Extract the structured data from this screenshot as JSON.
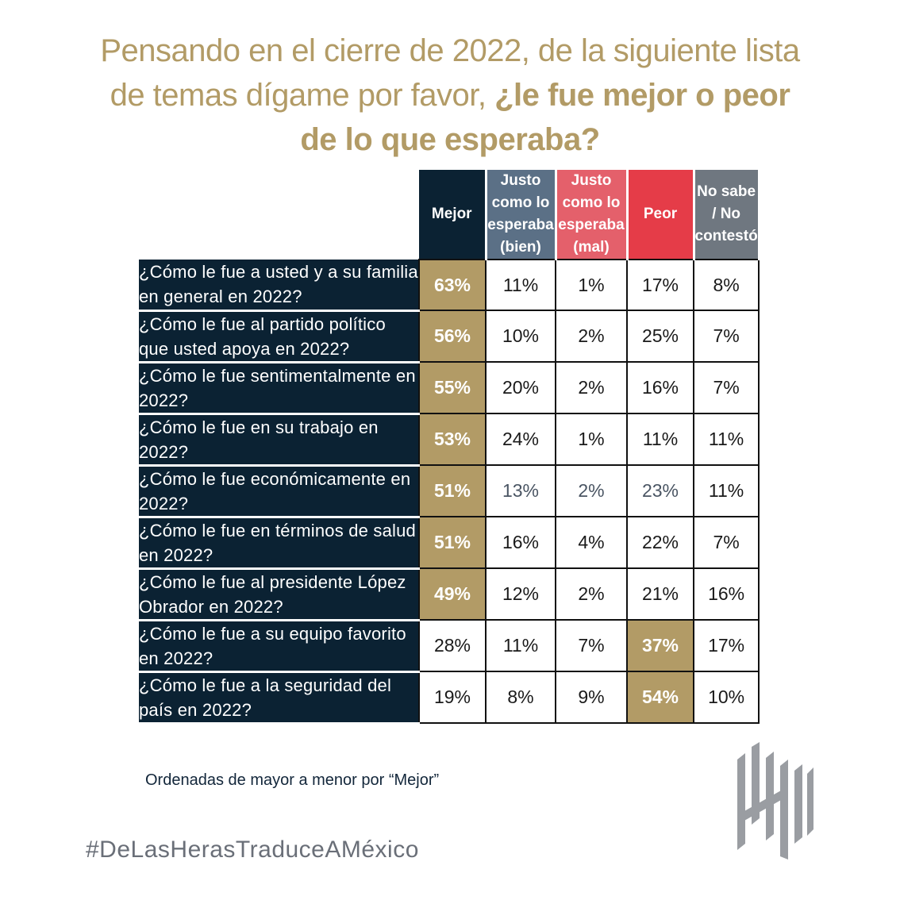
{
  "title": {
    "line1": "Pensando en el cierre de 2022, de la siguiente lista",
    "line2_plain": "de temas dígame por favor, ",
    "line2_bold": "¿le fue mejor o peor",
    "line3_bold": "de lo que esperaba?"
  },
  "colors": {
    "title": "#b29b66",
    "mejor_header": "#0b2233",
    "bien_header": "#5b7086",
    "mal_header": "#e4606b",
    "peor_header": "#e53c48",
    "ns_header": "#6f7780",
    "highlight": "#b29b66",
    "question_bg": "#0b2233"
  },
  "headers": [
    {
      "lines": [
        "Mejor"
      ]
    },
    {
      "lines": [
        "Justo",
        "como lo",
        "esperaba",
        "(bien)"
      ]
    },
    {
      "lines": [
        "Justo",
        "como lo",
        "esperaba",
        "(mal)"
      ]
    },
    {
      "lines": [
        "Peor"
      ]
    },
    {
      "lines": [
        "No sabe",
        "/ No",
        "contestó"
      ]
    }
  ],
  "rows": [
    {
      "q": "¿Cómo le fue a usted y a su familia en general en 2022?",
      "v": [
        "63%",
        "11%",
        "1%",
        "17%",
        "8%"
      ],
      "hl": 0
    },
    {
      "q": "¿Cómo le fue al partido político que usted apoya en 2022?",
      "v": [
        "56%",
        "10%",
        "2%",
        "25%",
        "7%"
      ],
      "hl": 0
    },
    {
      "q": "¿Cómo le fue sentimentalmente en 2022?",
      "v": [
        "55%",
        "20%",
        "2%",
        "16%",
        "7%"
      ],
      "hl": 0
    },
    {
      "q": "¿Cómo le fue en su trabajo en 2022?",
      "v": [
        "53%",
        "24%",
        "1%",
        "11%",
        "11%"
      ],
      "hl": 0
    },
    {
      "q": "¿Cómo le fue económicamente en 2022?",
      "v": [
        "51%",
        "13%",
        "2%",
        "23%",
        "11%"
      ],
      "hl": 0,
      "muted": true
    },
    {
      "q": "¿Cómo le fue en términos de salud en 2022?",
      "v": [
        "51%",
        "16%",
        "4%",
        "22%",
        "7%"
      ],
      "hl": 0
    },
    {
      "q": "¿Cómo le fue al presidente López Obrador en 2022?",
      "v": [
        "49%",
        "12%",
        "2%",
        "21%",
        "16%"
      ],
      "hl": 0
    },
    {
      "q": "¿Cómo le fue a su equipo favorito en 2022?",
      "v": [
        "28%",
        "11%",
        "7%",
        "37%",
        "17%"
      ],
      "hl": 3
    },
    {
      "q": "¿Cómo le fue a la seguridad del país en 2022?",
      "v": [
        "19%",
        "8%",
        "9%",
        "54%",
        "10%"
      ],
      "hl": 3
    }
  ],
  "chart_data": {
    "type": "table",
    "title": "Pensando en el cierre de 2022, de la siguiente lista de temas dígame por favor, ¿le fue mejor o peor de lo que esperaba?",
    "columns": [
      "Mejor",
      "Justo como lo esperaba (bien)",
      "Justo como lo esperaba (mal)",
      "Peor",
      "No sabe / No contestó"
    ],
    "categories": [
      "¿Cómo le fue a usted y a su familia en general en 2022?",
      "¿Cómo le fue al partido político que usted apoya en 2022?",
      "¿Cómo le fue sentimentalmente en 2022?",
      "¿Cómo le fue en su trabajo en 2022?",
      "¿Cómo le fue económicamente en 2022?",
      "¿Cómo le fue en términos de salud en 2022?",
      "¿Cómo le fue al presidente López Obrador en 2022?",
      "¿Cómo le fue a su equipo favorito en 2022?",
      "¿Cómo le fue a la seguridad del país en 2022?"
    ],
    "series": [
      {
        "name": "Mejor",
        "values": [
          63,
          56,
          55,
          53,
          51,
          51,
          49,
          28,
          19
        ]
      },
      {
        "name": "Justo como lo esperaba (bien)",
        "values": [
          11,
          10,
          20,
          24,
          13,
          16,
          12,
          11,
          8
        ]
      },
      {
        "name": "Justo como lo esperaba (mal)",
        "values": [
          1,
          2,
          2,
          1,
          2,
          4,
          2,
          7,
          9
        ]
      },
      {
        "name": "Peor",
        "values": [
          17,
          25,
          16,
          11,
          23,
          22,
          21,
          37,
          54
        ]
      },
      {
        "name": "No sabe / No contestó",
        "values": [
          8,
          7,
          7,
          11,
          11,
          7,
          16,
          17,
          10
        ]
      }
    ],
    "units": "%"
  },
  "note": "Ordenadas de mayor a menor por “Mejor”",
  "hashtag": "#DeLasHerasTraduceAMéxico",
  "logo_icon": "de-las-heras-logo-icon"
}
